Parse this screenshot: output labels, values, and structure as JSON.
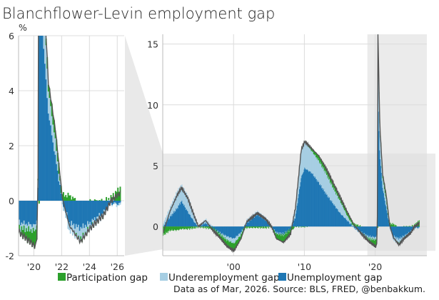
{
  "chart_data": {
    "type": "area",
    "title": "Blanchflower-Levin employment gap",
    "ylabel": "%",
    "footer": "Data as of Mar, 2026. Source: BLS, FRED, @benbakkum.",
    "colors": {
      "participation": "#2ca02c",
      "underemployment": "#a6cee3",
      "unemployment": "#1f77b4",
      "total_line": "#555555",
      "band": "#ebebeb",
      "band_dark": "#dedede"
    },
    "legend": [
      {
        "key": "participation",
        "label": "Participation gap"
      },
      {
        "key": "underemployment",
        "label": "Underemployment gap"
      },
      {
        "key": "unemployment",
        "label": "Unemployment gap"
      }
    ],
    "series_keypoints": {
      "columns": [
        "year",
        "unemployment",
        "underemployment",
        "participation"
      ],
      "rows": [
        [
          1990.0,
          0.0,
          0.2,
          -0.7
        ],
        [
          1991.0,
          0.8,
          0.8,
          -0.3
        ],
        [
          1992.0,
          1.5,
          1.4,
          -0.3
        ],
        [
          1992.6,
          2.1,
          1.3,
          -0.2
        ],
        [
          1993.5,
          1.2,
          1.3,
          -0.2
        ],
        [
          1994.5,
          0.3,
          0.5,
          -0.1
        ],
        [
          1995.0,
          0.0,
          0.0,
          0.0
        ],
        [
          1996.0,
          0.3,
          0.3,
          -0.1
        ],
        [
          1997.0,
          -0.1,
          0.0,
          -0.2
        ],
        [
          1998.0,
          -0.5,
          -0.1,
          -0.3
        ],
        [
          1999.0,
          -0.8,
          -0.3,
          -0.5
        ],
        [
          2000.0,
          -1.0,
          -0.4,
          -0.6
        ],
        [
          2001.0,
          -0.5,
          -0.2,
          -0.3
        ],
        [
          2001.8,
          0.3,
          0.2,
          -0.1
        ],
        [
          2003.3,
          1.0,
          0.2,
          -0.1
        ],
        [
          2004.5,
          0.5,
          0.2,
          -0.1
        ],
        [
          2005.3,
          0.0,
          0.0,
          0.0
        ],
        [
          2006.0,
          -0.5,
          -0.1,
          -0.4
        ],
        [
          2007.0,
          -0.6,
          -0.1,
          -0.6
        ],
        [
          2008.0,
          -0.2,
          0.0,
          -0.4
        ],
        [
          2008.7,
          0.8,
          0.8,
          0.0
        ],
        [
          2009.5,
          4.0,
          2.3,
          0.0
        ],
        [
          2010.0,
          4.8,
          2.2,
          0.0
        ],
        [
          2011.0,
          4.4,
          1.8,
          0.2
        ],
        [
          2012.0,
          3.6,
          1.8,
          0.4
        ],
        [
          2013.0,
          2.7,
          1.7,
          0.4
        ],
        [
          2014.0,
          1.9,
          1.3,
          0.4
        ],
        [
          2015.0,
          1.1,
          1.0,
          0.3
        ],
        [
          2016.0,
          0.5,
          0.4,
          0.3
        ],
        [
          2017.0,
          -0.1,
          0.0,
          0.2
        ],
        [
          2018.0,
          -0.5,
          -0.1,
          0.0
        ],
        [
          2019.0,
          -0.8,
          -0.2,
          -0.2
        ],
        [
          2020.15,
          -0.9,
          -0.2,
          -0.6
        ],
        [
          2020.25,
          0.5,
          0.2,
          0.0
        ],
        [
          2020.33,
          11.0,
          5.0,
          0.0
        ],
        [
          2020.6,
          6.0,
          2.0,
          0.3
        ],
        [
          2021.0,
          3.2,
          0.8,
          0.3
        ],
        [
          2021.5,
          1.6,
          0.6,
          0.4
        ],
        [
          2022.0,
          0.0,
          -0.1,
          0.2
        ],
        [
          2022.5,
          -0.8,
          -0.3,
          0.2
        ],
        [
          2023.3,
          -1.0,
          -0.4,
          -0.1
        ],
        [
          2024.0,
          -0.8,
          -0.2,
          0.0
        ],
        [
          2025.0,
          -0.4,
          -0.1,
          0.0
        ],
        [
          2025.5,
          -0.1,
          0.0,
          0.1
        ],
        [
          2026.2,
          -0.1,
          -0.1,
          0.5
        ]
      ]
    },
    "panels": [
      {
        "name": "detail",
        "xlim": [
          2018.9,
          2026.5
        ],
        "ylim": [
          -2,
          6
        ],
        "yticks": [
          {
            "v": -2,
            "label": "-2"
          },
          {
            "v": 0,
            "label": "0"
          },
          {
            "v": 2,
            "label": "2"
          },
          {
            "v": 4,
            "label": "4"
          },
          {
            "v": 6,
            "label": "6"
          }
        ],
        "xticks": [
          {
            "v": 2020,
            "label": "'20"
          },
          {
            "v": 2022,
            "label": "'22"
          },
          {
            "v": 2024,
            "label": "'24"
          },
          {
            "v": 2026,
            "label": "'26"
          }
        ]
      },
      {
        "name": "full",
        "xlim": [
          1990,
          2027.3
        ],
        "ylim": [
          -2.4,
          15.8
        ],
        "yticks": [
          {
            "v": 0,
            "label": "0"
          },
          {
            "v": 5,
            "label": "5"
          },
          {
            "v": 10,
            "label": "10"
          },
          {
            "v": 15,
            "label": "15"
          }
        ],
        "xticks": [
          {
            "v": 2000,
            "label": "'00"
          },
          {
            "v": 2010,
            "label": "'10"
          },
          {
            "v": 2020,
            "label": "'20"
          }
        ],
        "zoom_band": {
          "xlim": [
            2018.9,
            2027.3
          ],
          "ylim": [
            -2,
            6
          ]
        }
      }
    ]
  }
}
